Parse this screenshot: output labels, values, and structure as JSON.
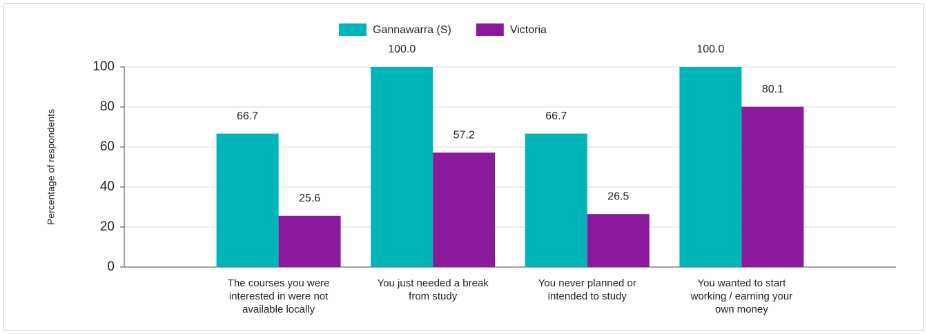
{
  "chart_data": {
    "type": "bar",
    "y_label": "Percentage of respondents",
    "categories": [
      "The courses you were interested in were not available locally",
      "You just needed a break from study",
      "You never planned or intended to study",
      "You wanted to start working / earning your own money"
    ],
    "series": [
      {
        "name": "Gannawarra (S)",
        "color": "#00b5b8",
        "values": [
          66.7,
          100,
          66.7,
          100
        ],
        "value_labels": [
          "66.7",
          "100.0",
          "66.7",
          "100.0"
        ]
      },
      {
        "name": "Victoria",
        "color": "#8a1a9b",
        "values": [
          25.6,
          57.2,
          26.5,
          80.1
        ],
        "value_labels": [
          "25.6",
          "57.2",
          "26.5",
          "80.1"
        ]
      }
    ],
    "ylim": [
      0,
      100
    ],
    "yticks": [
      0,
      20,
      40,
      60,
      80,
      100
    ],
    "grid": true,
    "legend": "top"
  }
}
